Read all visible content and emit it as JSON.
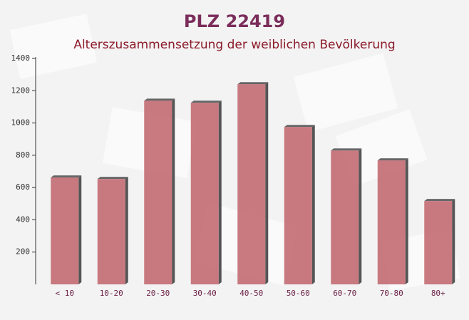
{
  "chart_data": {
    "type": "bar",
    "title": "PLZ 22419",
    "subtitle": "Alterszusammensetzung der weiblichen Bevölkerung",
    "categories": [
      "< 10",
      "10-20",
      "20-30",
      "30-40",
      "40-50",
      "50-60",
      "60-70",
      "70-80",
      "80+"
    ],
    "values": [
      662,
      653,
      1138,
      1125,
      1240,
      975,
      829,
      768,
      516
    ],
    "color": "#c0636b",
    "ylim": [
      0,
      1400
    ],
    "yticks": [
      200,
      400,
      600,
      800,
      1000,
      1200,
      1400
    ],
    "grid": false
  }
}
